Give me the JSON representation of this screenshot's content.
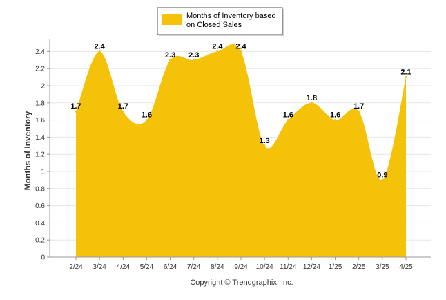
{
  "chart_data": {
    "type": "area",
    "ylabel": "Months of Inventory",
    "ylim": [
      0,
      2.5
    ],
    "yticks": [
      "0",
      "0.2",
      "0.4",
      "0.6",
      "0.8",
      "1",
      "1.2",
      "1.4",
      "1.6",
      "1.8",
      "2",
      "2.2",
      "2.4"
    ],
    "grid": true,
    "legend_position": "top-center",
    "categories": [
      "2/24",
      "3/24",
      "4/24",
      "5/24",
      "6/24",
      "7/24",
      "8/24",
      "9/24",
      "10/24",
      "11/24",
      "12/24",
      "1/25",
      "2/25",
      "3/25",
      "4/25"
    ],
    "series": [
      {
        "name": "Months of Inventory based on Closed Sales",
        "legend_lines": [
          "Months of Inventory based",
          "on Closed Sales"
        ],
        "color": "#F5C20A",
        "values": [
          1.7,
          2.4,
          1.7,
          1.6,
          2.3,
          2.3,
          2.4,
          2.4,
          1.3,
          1.6,
          1.8,
          1.6,
          1.7,
          0.9,
          2.1
        ],
        "labels": [
          "1.7",
          "2.4",
          "1.7",
          "1.6",
          "2.3",
          "2.3",
          "2.4",
          "2.4",
          "1.3",
          "1.6",
          "1.8",
          "1.6",
          "1.7",
          "0.9",
          "2.1"
        ]
      }
    ]
  },
  "footer": {
    "copyright": "Copyright © Trendgraphix, Inc."
  }
}
